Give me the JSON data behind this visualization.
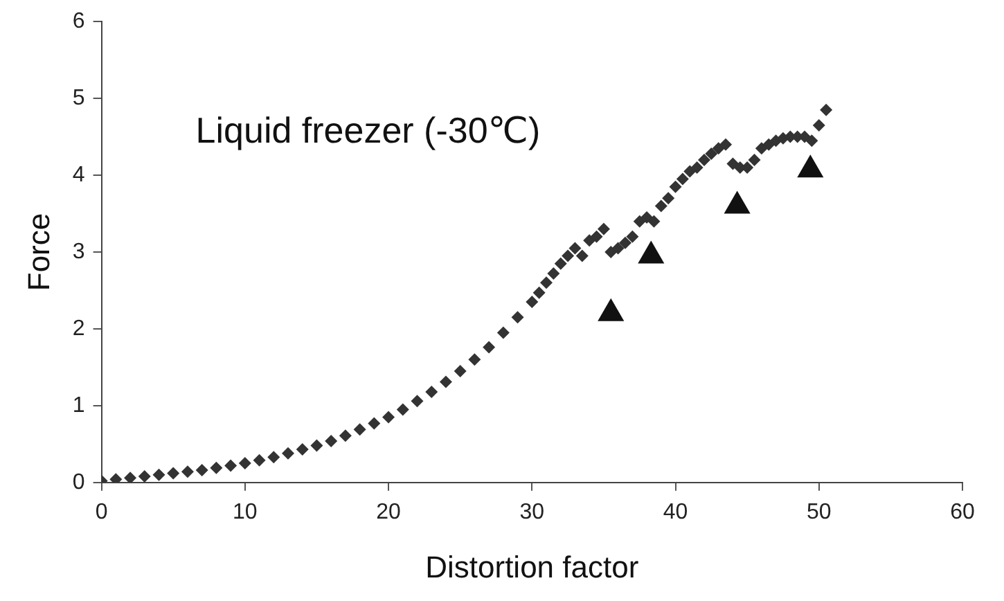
{
  "chart_data": {
    "type": "scatter",
    "xlabel": "Distortion factor",
    "ylabel": "Force",
    "annotations": [
      "Liquid freezer (-30℃)"
    ],
    "xlim": [
      0,
      60
    ],
    "ylim": [
      0,
      6
    ],
    "xticks": [
      0,
      10,
      20,
      30,
      40,
      50,
      60
    ],
    "yticks": [
      0,
      1,
      2,
      3,
      4,
      5,
      6
    ],
    "grid": false,
    "legend": false,
    "series": [
      {
        "color": "#333333",
        "marker": "diamond",
        "x": [
          0,
          1,
          2,
          3,
          4,
          5,
          6,
          7,
          8,
          9,
          10,
          11,
          12,
          13,
          14,
          15,
          16,
          17,
          18,
          19,
          20,
          21,
          22,
          23,
          24,
          25,
          26,
          27,
          28,
          29,
          30,
          30.5,
          31,
          31.5,
          32,
          32.5,
          33,
          33.5,
          34,
          34.5,
          35,
          35.5,
          36,
          36.5,
          37,
          37.5,
          38,
          38.5,
          39,
          39.5,
          40,
          40.5,
          41,
          41.5,
          42,
          42.5,
          43,
          43.5,
          44,
          44.5,
          45,
          45.5,
          46,
          46.5,
          47,
          47.5,
          48,
          48.5,
          49,
          49.5,
          50,
          50.5
        ],
        "values": [
          0.02,
          0.04,
          0.06,
          0.08,
          0.1,
          0.12,
          0.14,
          0.16,
          0.19,
          0.22,
          0.25,
          0.29,
          0.33,
          0.38,
          0.43,
          0.48,
          0.54,
          0.61,
          0.69,
          0.77,
          0.85,
          0.95,
          1.06,
          1.18,
          1.31,
          1.45,
          1.6,
          1.76,
          1.95,
          2.15,
          2.35,
          2.47,
          2.6,
          2.72,
          2.85,
          2.95,
          3.05,
          2.95,
          3.15,
          3.2,
          3.3,
          3.0,
          3.05,
          3.12,
          3.2,
          3.4,
          3.45,
          3.4,
          3.6,
          3.7,
          3.85,
          3.95,
          4.05,
          4.1,
          4.2,
          4.28,
          4.35,
          4.4,
          4.15,
          4.1,
          4.1,
          4.2,
          4.35,
          4.4,
          4.45,
          4.48,
          4.5,
          4.5,
          4.5,
          4.45,
          4.65,
          4.85
        ]
      },
      {
        "color": "#111111",
        "marker": "triangle",
        "x": [
          35.5,
          38.3,
          44.3,
          49.4
        ],
        "values": [
          2.2,
          2.95,
          3.6,
          4.07
        ]
      }
    ]
  }
}
